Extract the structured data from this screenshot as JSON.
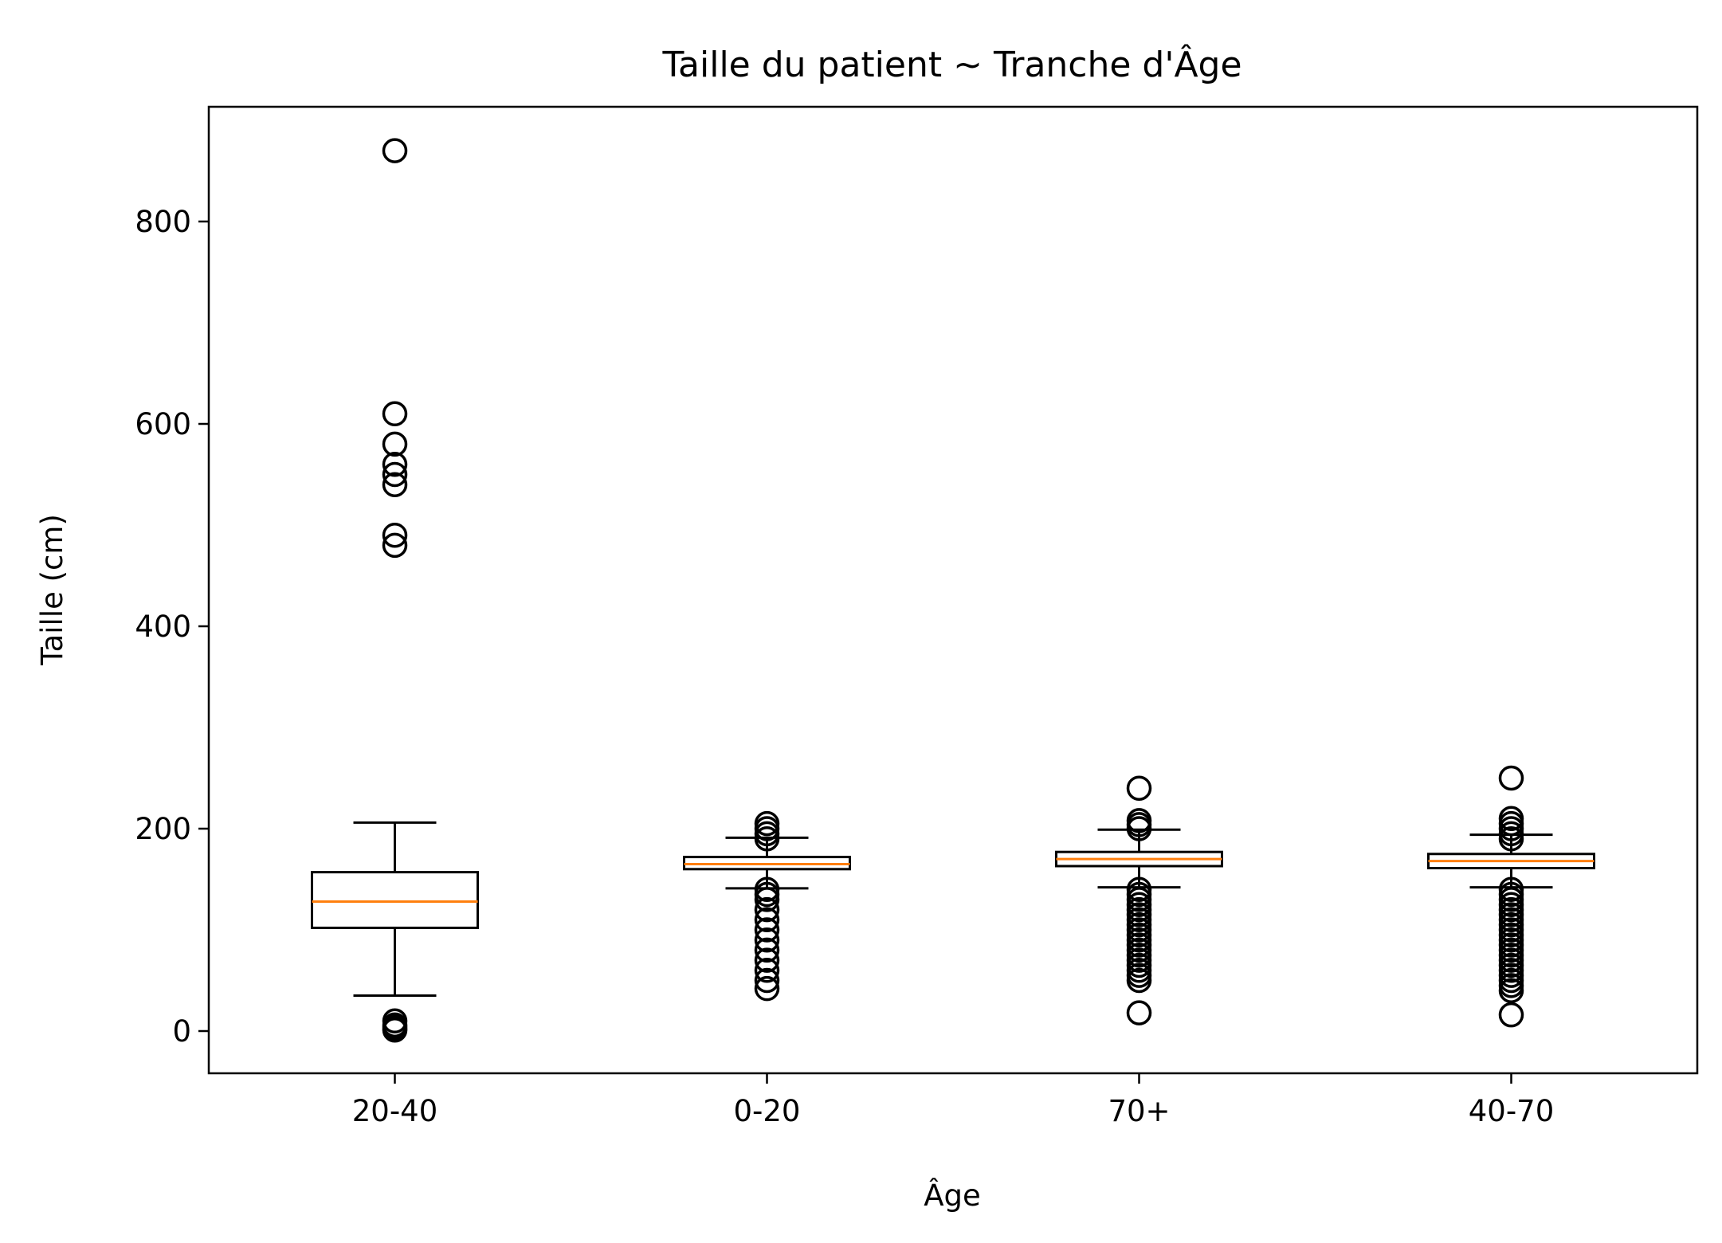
{
  "chart_data": {
    "type": "box",
    "title": "Taille du patient ~ Tranche d'Âge",
    "xlabel": "Âge",
    "ylabel": "Taille (cm)",
    "ylim": [
      -40,
      915
    ],
    "yticks": [
      0,
      200,
      400,
      600,
      800
    ],
    "grid": false,
    "colors": {
      "box": "#000000",
      "median": "#ff7f0e",
      "outlier": "#000000"
    },
    "categories": [
      "20-40",
      "0-20",
      "70+",
      "40-70"
    ],
    "boxes": [
      {
        "label": "20-40",
        "whisker_low": 35,
        "q1": 102,
        "median": 128,
        "q3": 157,
        "whisker_high": 206,
        "outliers": [
          870,
          610,
          580,
          560,
          550,
          540,
          490,
          480,
          10,
          6,
          4,
          2,
          1
        ]
      },
      {
        "label": "0-20",
        "whisker_low": 141,
        "q1": 160,
        "median": 165,
        "q3": 172,
        "whisker_high": 191,
        "outliers": [
          205,
          200,
          195,
          190,
          140,
          135,
          130,
          120,
          110,
          100,
          90,
          80,
          70,
          60,
          50,
          42
        ]
      },
      {
        "label": "70+",
        "whisker_low": 142,
        "q1": 163,
        "median": 170,
        "q3": 177,
        "whisker_high": 199,
        "outliers": [
          240,
          208,
          204,
          200,
          140,
          135,
          130,
          125,
          120,
          115,
          110,
          105,
          100,
          95,
          90,
          85,
          80,
          75,
          70,
          65,
          60,
          55,
          50,
          18
        ]
      },
      {
        "label": "40-70",
        "whisker_low": 142,
        "q1": 161,
        "median": 168,
        "q3": 175,
        "whisker_high": 194,
        "outliers": [
          250,
          210,
          205,
          200,
          195,
          190,
          140,
          135,
          130,
          125,
          120,
          115,
          110,
          105,
          100,
          95,
          90,
          85,
          80,
          75,
          70,
          65,
          60,
          55,
          50,
          45,
          40,
          16
        ]
      }
    ]
  }
}
